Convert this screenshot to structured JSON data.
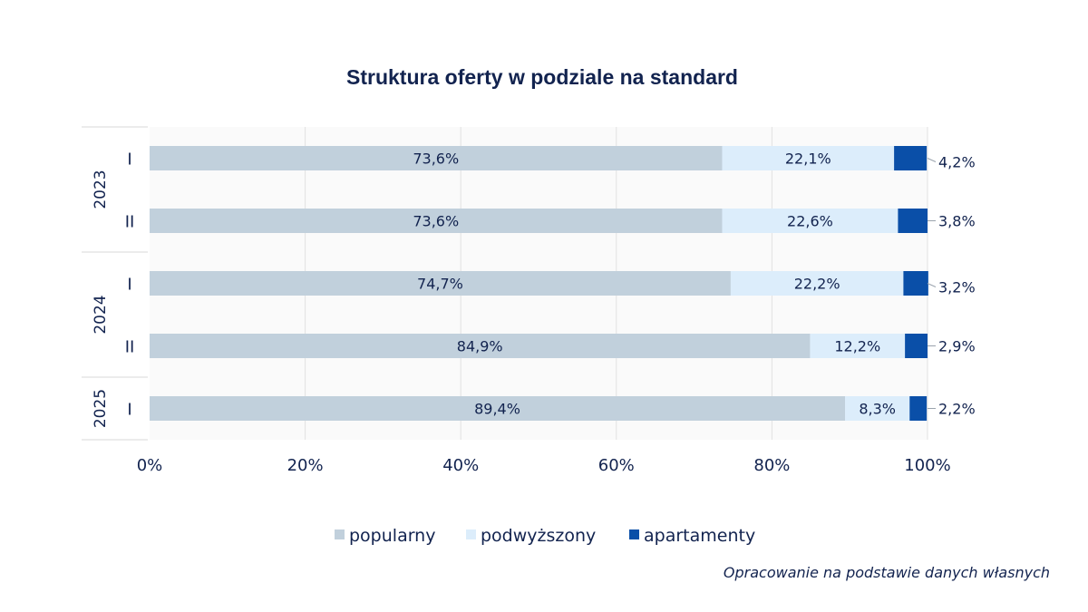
{
  "chart_data": {
    "type": "bar",
    "orientation": "horizontal",
    "stacked": true,
    "title": "Struktura oferty w podziale na standard",
    "groups": [
      {
        "label": "2023",
        "categories": [
          "I",
          "II"
        ]
      },
      {
        "label": "2024",
        "categories": [
          "I",
          "II"
        ]
      },
      {
        "label": "2025",
        "categories": [
          "I"
        ]
      }
    ],
    "series": [
      {
        "name": "popularny",
        "color": "#c1d0dc",
        "values": [
          73.6,
          73.6,
          74.7,
          84.9,
          89.4
        ],
        "labels": [
          "73,6%",
          "73,6%",
          "74,7%",
          "84,9%",
          "89,4%"
        ]
      },
      {
        "name": "podwyższony",
        "color": "#dcedfb",
        "values": [
          22.1,
          22.6,
          22.2,
          12.2,
          8.3
        ],
        "labels": [
          "22,1%",
          "22,6%",
          "22,2%",
          "12,2%",
          "8,3%"
        ]
      },
      {
        "name": "apartamenty",
        "color": "#0a4fa8",
        "values": [
          4.2,
          3.8,
          3.2,
          2.9,
          2.2
        ],
        "labels": [
          "4,2%",
          "3,8%",
          "3,2%",
          "2,9%",
          "2,2%"
        ]
      }
    ],
    "xlim": [
      0,
      100
    ],
    "xticks": [
      "0%",
      "20%",
      "40%",
      "60%",
      "80%",
      "100%"
    ],
    "grid": true,
    "legend_position": "bottom"
  },
  "source": "Opracowanie na podstawie danych własnych"
}
